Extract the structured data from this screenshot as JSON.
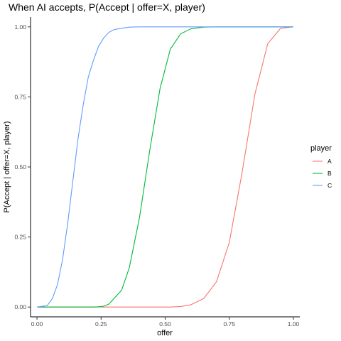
{
  "chart_data": {
    "type": "line",
    "title": "When AI accepts, P(Accept | offer=X, player)",
    "xlabel": "offer",
    "ylabel": "P(Accept | offer=X, player)",
    "xlim": [
      -0.025,
      1.025
    ],
    "ylim": [
      -0.035,
      1.035
    ],
    "xticks": [
      0,
      0.25,
      0.5,
      0.75,
      1
    ],
    "xtick_labels": [
      "0.00",
      "0.25",
      "0.50",
      "0.75",
      "1.00"
    ],
    "yticks": [
      0,
      0.25,
      0.5,
      0.75,
      1
    ],
    "ytick_labels": [
      "0.00",
      "0.25",
      "0.50",
      "0.75",
      "1.00"
    ],
    "grid": false,
    "legend_title": "player",
    "legend_position": "right",
    "x": [
      0,
      0.04,
      0.06,
      0.08,
      0.1,
      0.12,
      0.14,
      0.16,
      0.18,
      0.2,
      0.22,
      0.24,
      0.26,
      0.28,
      0.3,
      0.33,
      0.36,
      0.4,
      0.44,
      0.48,
      0.52,
      0.56,
      0.6,
      0.65,
      0.7,
      0.75,
      0.8,
      0.85,
      0.9,
      0.95,
      1
    ],
    "series": [
      {
        "name": "A",
        "color": "#F8766D",
        "values": [
          0,
          0,
          0,
          0,
          0,
          0,
          0,
          0,
          0,
          0,
          0,
          0,
          0,
          0,
          0,
          0,
          0,
          0,
          0,
          0,
          0,
          0.002,
          0.008,
          0.03,
          0.09,
          0.23,
          0.48,
          0.76,
          0.94,
          0.995,
          1
        ]
      },
      {
        "name": "B",
        "color": "#00BA38",
        "values": [
          0,
          0,
          0,
          0,
          0,
          0,
          0,
          0,
          0,
          0,
          0,
          0.001,
          0.003,
          0.01,
          0.03,
          0.06,
          0.14,
          0.32,
          0.56,
          0.78,
          0.92,
          0.975,
          0.993,
          0.999,
          1,
          1,
          1,
          1,
          1,
          1,
          1
        ]
      },
      {
        "name": "C",
        "color": "#619CFF",
        "values": [
          0,
          0.005,
          0.03,
          0.08,
          0.17,
          0.3,
          0.45,
          0.6,
          0.72,
          0.82,
          0.88,
          0.93,
          0.96,
          0.98,
          0.99,
          0.995,
          0.999,
          1,
          1,
          1,
          1,
          1,
          1,
          1,
          1,
          1,
          1,
          1,
          1,
          1,
          1
        ]
      }
    ]
  }
}
